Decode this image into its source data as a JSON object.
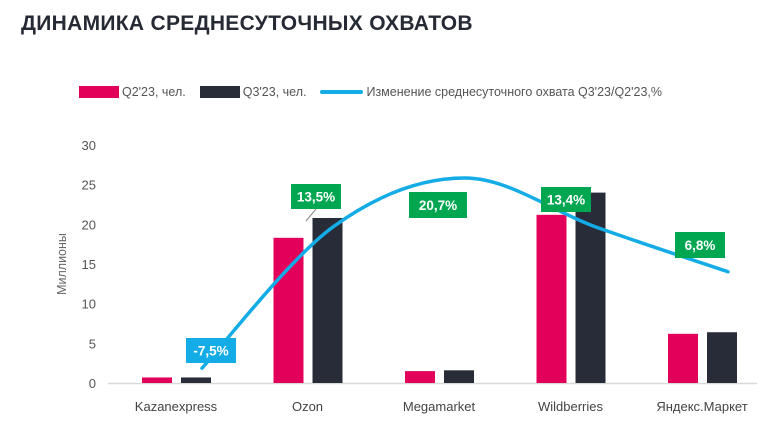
{
  "title": "ДИНАМИКА СРЕДНЕСУТОЧНЫХ ОХВАТОВ",
  "colors": {
    "q2": "#e2005a",
    "q3": "#282c39",
    "line": "#14ace6",
    "pos_label": "#00a650",
    "neg_label": "#14ace6"
  },
  "chart_data": {
    "type": "bar",
    "title": "ДИНАМИКА СРЕДНЕСУТОЧНЫХ ОХВАТОВ",
    "xlabel": "",
    "ylabel": "Миллионы",
    "ylim": [
      0,
      30
    ],
    "yticks": [
      "0",
      "5",
      "10",
      "15",
      "20",
      "25",
      "30"
    ],
    "grid": false,
    "legend_position": "top",
    "categories": [
      "Kazanexpress",
      "Ozon",
      "Megamarket",
      "Wildberries",
      "Яндекс.Маркет"
    ],
    "series": [
      {
        "name": "Q2'23, чел.",
        "type": "bar",
        "values": [
          0.7,
          18.3,
          1.5,
          21.2,
          6.2
        ]
      },
      {
        "name": "Q3'23, чел.",
        "type": "bar",
        "values": [
          0.7,
          20.8,
          1.6,
          24.0,
          6.4
        ]
      },
      {
        "name": "Изменение среднесуточного охвата Q3'23/Q2'23,%",
        "type": "line",
        "values": [
          -7.5,
          13.5,
          20.7,
          13.4,
          6.8
        ],
        "labels": [
          "-7,5%",
          "13,5%",
          "20,7%",
          "13,4%",
          "6,8%"
        ],
        "secondary_range": [
          -9.7,
          25.6
        ]
      }
    ]
  }
}
